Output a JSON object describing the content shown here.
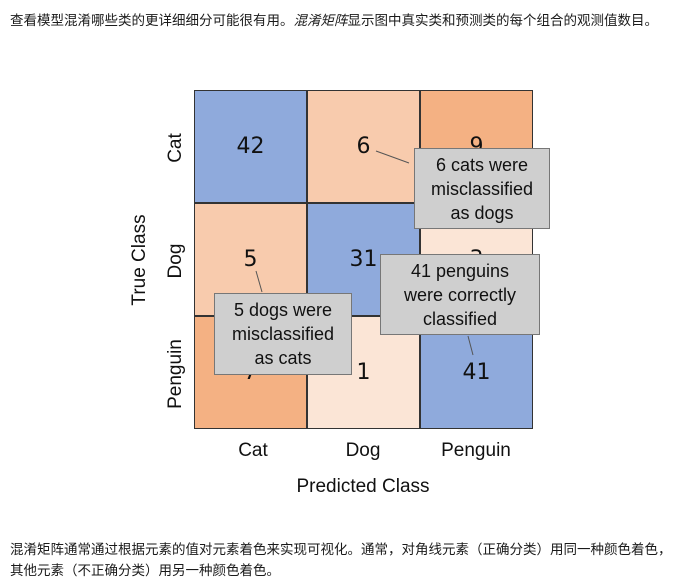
{
  "intro": {
    "text_before": "查看模型混淆哪些类的更详细细分可能很有用。",
    "term": "混淆矩阵",
    "text_after": "显示图中真实类和预测类的每个组合的观测值数目。"
  },
  "figure": {
    "x_axis_title": "Predicted Class",
    "y_axis_title": "True Class",
    "x_labels": [
      "Cat",
      "Dog",
      "Penguin"
    ],
    "y_labels": [
      "Cat",
      "Dog",
      "Penguin"
    ],
    "colors": {
      "diagonal": "#8faadc",
      "high_error": "#f4b183",
      "mid_error": "#f8cbad",
      "low_error": "#fbe5d6"
    },
    "cells": [
      [
        "42",
        "6",
        "9"
      ],
      [
        "5",
        "31",
        "3"
      ],
      [
        "7",
        "1",
        "41"
      ]
    ],
    "callouts": {
      "cats_as_dogs": [
        "6 cats were",
        "misclassified",
        "as dogs"
      ],
      "dogs_as_cats": [
        "5 dogs were",
        "misclassified",
        "as cats"
      ],
      "penguins_correct": [
        "41 penguins",
        "were correctly",
        "classified"
      ]
    }
  },
  "outro": {
    "text": "混淆矩阵通常通过根据元素的值对元素着色来实现可视化。通常，对角线元素（正确分类）用同一种颜色着色，其他元素（不正确分类）用另一种颜色着色。"
  }
}
